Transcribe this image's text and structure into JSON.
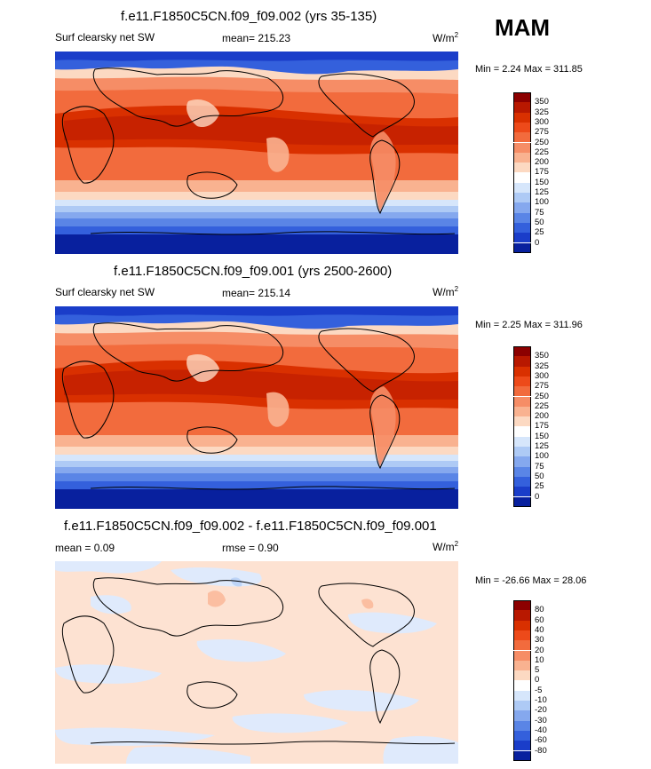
{
  "season": "MAM",
  "panels": [
    {
      "id": "top",
      "title": "f.e11.F1850C5CN.f09_f09.002 (yrs 35-135)",
      "left_label": "Surf clearsky net SW",
      "stat_label": "mean= 215.23",
      "units": "W/m",
      "units_sup": "2",
      "minmax": "Min =   2.24 Max = 311.85",
      "colorbar": {
        "labels": [
          "350",
          "325",
          "300",
          "275",
          "250",
          "225",
          "200",
          "175",
          "150",
          "125",
          "100",
          "75",
          "50",
          "25",
          "0"
        ],
        "colors": [
          "#8c0000",
          "#b81800",
          "#d93000",
          "#ed4a1a",
          "#f26b3d",
          "#f68d66",
          "#f9b290",
          "#fcd9c2",
          "#ffffff",
          "#d6e6fb",
          "#aecaf5",
          "#85a8ee",
          "#5a85e6",
          "#3460dc",
          "#1a3dc9",
          "#08209e"
        ]
      }
    },
    {
      "id": "middle",
      "title": "f.e11.F1850C5CN.f09_f09.001 (yrs 2500-2600)",
      "left_label": "Surf clearsky net SW",
      "stat_label": "mean= 215.14",
      "units": "W/m",
      "units_sup": "2",
      "minmax": "Min =   2.25 Max = 311.96",
      "colorbar": {
        "labels": [
          "350",
          "325",
          "300",
          "275",
          "250",
          "225",
          "200",
          "175",
          "150",
          "125",
          "100",
          "75",
          "50",
          "25",
          "0"
        ],
        "colors": [
          "#8c0000",
          "#b81800",
          "#d93000",
          "#ed4a1a",
          "#f26b3d",
          "#f68d66",
          "#f9b290",
          "#fcd9c2",
          "#ffffff",
          "#d6e6fb",
          "#aecaf5",
          "#85a8ee",
          "#5a85e6",
          "#3460dc",
          "#1a3dc9",
          "#08209e"
        ]
      }
    },
    {
      "id": "bottom",
      "title": "f.e11.F1850C5CN.f09_f09.002 - f.e11.F1850C5CN.f09_f09.001",
      "left_label": "mean =   0.09",
      "stat_label": "rmse =   0.90",
      "units": "W/m",
      "units_sup": "2",
      "minmax": "Min = -26.66 Max =  28.06",
      "colorbar": {
        "labels": [
          "80",
          "60",
          "40",
          "30",
          "20",
          "10",
          "5",
          "0",
          "-5",
          "-10",
          "-20",
          "-30",
          "-40",
          "-60",
          "-80"
        ],
        "colors": [
          "#8c0000",
          "#b81800",
          "#d93000",
          "#ed4a1a",
          "#f26b3d",
          "#f68d66",
          "#f9b290",
          "#fcd9c2",
          "#ffffff",
          "#d6e6fb",
          "#aecaf5",
          "#85a8ee",
          "#5a85e6",
          "#3460dc",
          "#1a3dc9",
          "#08209e"
        ]
      }
    }
  ],
  "map_colors": {
    "ocean_deep_red": "#d93000",
    "ocean_red": "#ed4a1a",
    "ocean_mid": "#f26b3d",
    "ocean_light": "#f68d66",
    "pale": "#fcd9c2",
    "white": "#ffffff",
    "light_blue": "#aecaf5",
    "mid_blue": "#5a85e6",
    "deep_blue": "#1a3dc9",
    "darkest_blue": "#08209e",
    "diff_pale_red": "#fde2d2",
    "diff_pale_blue": "#dfeafc"
  }
}
